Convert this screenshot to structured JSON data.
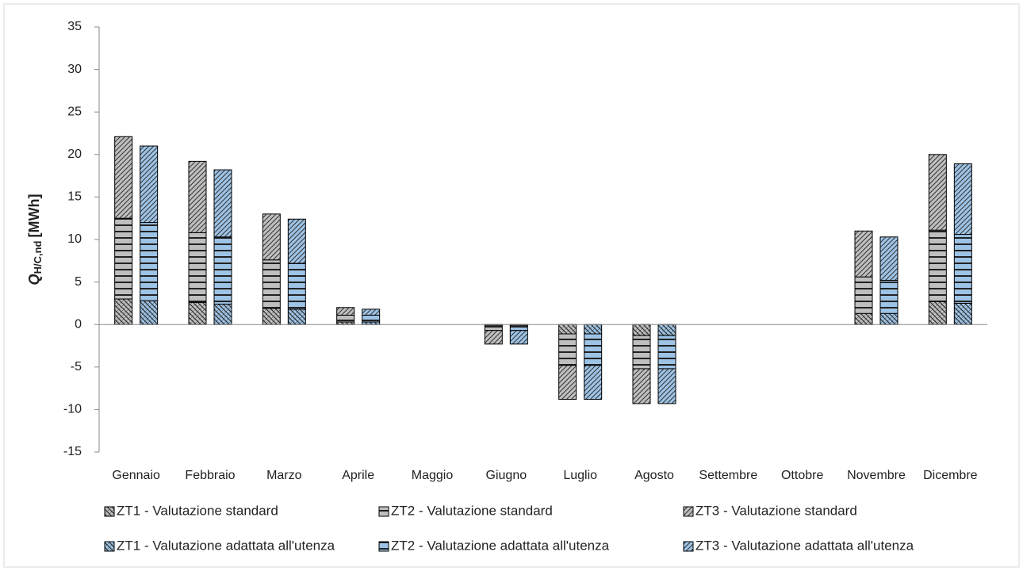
{
  "chart_data": {
    "type": "bar",
    "ylabel": {
      "symbol": "Q",
      "subscript": "H/C,nd",
      "unit": "[MWh]"
    },
    "categories": [
      "Gennaio",
      "Febbraio",
      "Marzo",
      "Aprile",
      "Maggio",
      "Giugno",
      "Luglio",
      "Agosto",
      "Settembre",
      "Ottobre",
      "Novembre",
      "Dicembre"
    ],
    "series": [
      {
        "name": "ZT1 - Valutazione standard",
        "color": "#bfbfbf",
        "pattern": "crosshatch",
        "stack": 0,
        "values": [
          3.0,
          2.6,
          1.9,
          0.3,
          0,
          -0.1,
          -1.1,
          -1.3,
          0,
          0,
          1.3,
          2.7
        ]
      },
      {
        "name": "ZT2 - Valutazione standard",
        "color": "#bfbfbf",
        "pattern": "horizontal",
        "stack": 0,
        "values": [
          9.5,
          8.2,
          5.7,
          0.8,
          0,
          -0.6,
          -3.7,
          -3.9,
          0,
          0,
          4.3,
          8.4
        ]
      },
      {
        "name": "ZT3 - Valutazione standard",
        "color": "#bfbfbf",
        "pattern": "diagonal",
        "stack": 0,
        "values": [
          9.6,
          8.4,
          5.4,
          0.9,
          0,
          -1.6,
          -4.0,
          -4.1,
          0,
          0,
          5.4,
          8.9
        ]
      },
      {
        "name": "ZT1 - Valutazione adattata all'utenza",
        "color": "#9dc3e6",
        "pattern": "crosshatch",
        "stack": 1,
        "values": [
          2.8,
          2.4,
          1.8,
          0.3,
          0,
          -0.1,
          -1.1,
          -1.3,
          0,
          0,
          1.3,
          2.5
        ]
      },
      {
        "name": "ZT2 - Valutazione adattata all'utenza",
        "color": "#9dc3e6",
        "pattern": "horizontal",
        "stack": 1,
        "values": [
          9.2,
          7.9,
          5.4,
          0.8,
          0,
          -0.6,
          -3.7,
          -3.9,
          0,
          0,
          3.9,
          8.1
        ]
      },
      {
        "name": "ZT3 - Valutazione adattata all'utenza",
        "color": "#9dc3e6",
        "pattern": "diagonal",
        "stack": 1,
        "values": [
          9.0,
          7.9,
          5.2,
          0.7,
          0,
          -1.6,
          -4.0,
          -4.1,
          0,
          0,
          5.1,
          8.3
        ]
      }
    ],
    "ylim": [
      -15,
      35
    ],
    "yticks": [
      -15,
      -10,
      -5,
      0,
      5,
      10,
      15,
      20,
      25,
      30,
      35
    ],
    "grid": false
  }
}
